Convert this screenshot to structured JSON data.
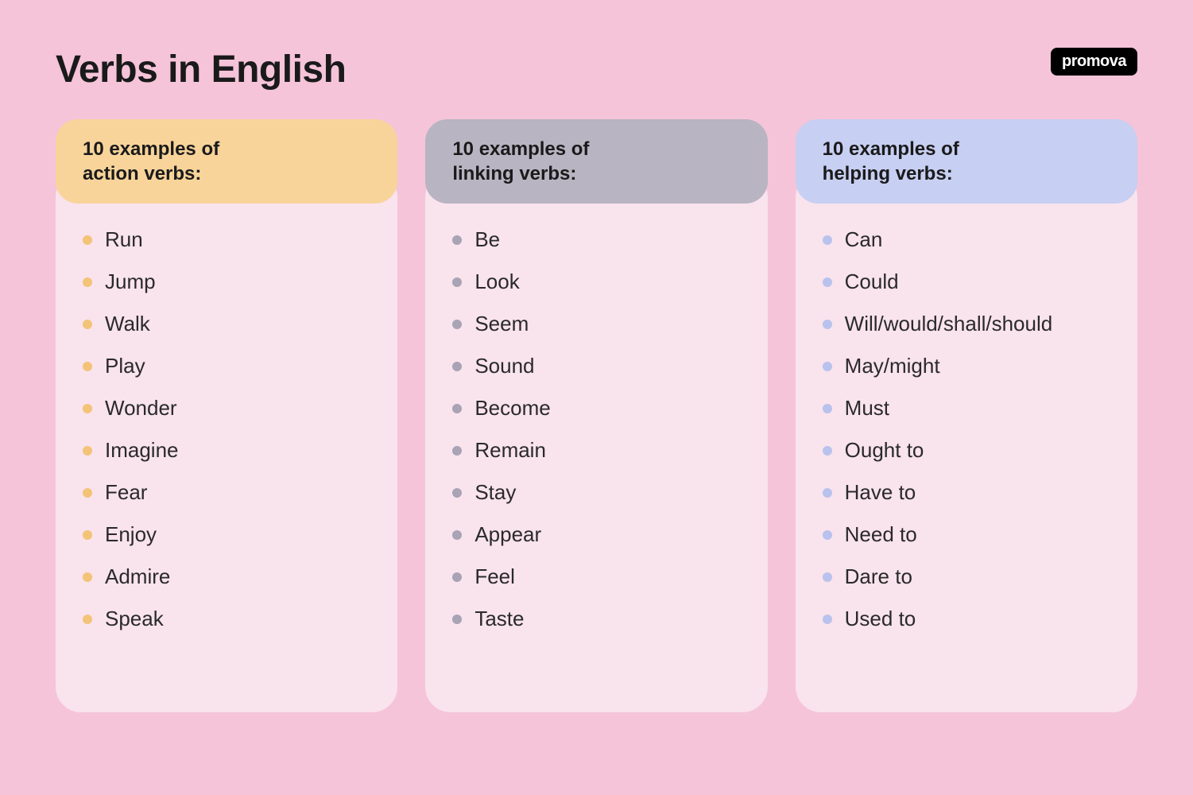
{
  "page": {
    "title": "Verbs in English",
    "logo": "promova",
    "background_color": "#f5c4d9",
    "card_background": "#f9e3ed",
    "title_color": "#1a1a1a",
    "title_fontsize": 48,
    "item_fontsize": 26,
    "header_fontsize": 24
  },
  "columns": [
    {
      "header_line1": "10 examples of",
      "header_line2": "action verbs:",
      "header_bg": "#f8d49a",
      "bullet_color": "#f3c377",
      "items": [
        "Run",
        "Jump",
        "Walk",
        "Play",
        "Wonder",
        "Imagine",
        "Fear",
        "Enjoy",
        "Admire",
        "Speak"
      ]
    },
    {
      "header_line1": "10 examples of",
      "header_line2": "linking verbs:",
      "header_bg": "#b8b4c2",
      "bullet_color": "#a8a3b5",
      "items": [
        "Be",
        "Look",
        "Seem",
        "Sound",
        "Become",
        "Remain",
        "Stay",
        "Appear",
        "Feel",
        "Taste"
      ]
    },
    {
      "header_line1": "10 examples of",
      "header_line2": "helping verbs:",
      "header_bg": "#c7cff2",
      "bullet_color": "#b8c2ed",
      "items": [
        "Can",
        "Could",
        "Will/would/shall/should",
        "May/might",
        "Must",
        "Ought to",
        "Have to",
        "Need to",
        "Dare to",
        "Used to"
      ]
    }
  ]
}
